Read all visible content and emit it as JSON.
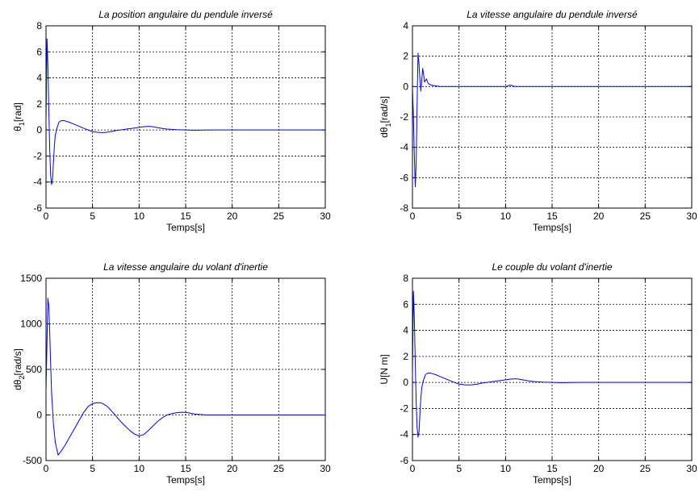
{
  "style": {
    "line_color": "#0000ff",
    "background": "#ffffff"
  },
  "chart_data": [
    {
      "type": "line",
      "title": "La position angulaire du pendule inversé",
      "xlabel": "Temps[s]",
      "ylabel": {
        "main": "θ",
        "sub": "1",
        "rest": "[rad]"
      },
      "xlim": [
        0,
        30
      ],
      "ylim": [
        -6,
        8
      ],
      "xticks": [
        0,
        5,
        10,
        15,
        20,
        25,
        30
      ],
      "yticks": [
        -6,
        -4,
        -2,
        0,
        2,
        4,
        6,
        8
      ],
      "grid": true,
      "series": [
        {
          "x": [
            0,
            0.1,
            0.2,
            0.3,
            0.4,
            0.5,
            0.6,
            0.7,
            0.8,
            0.9,
            1.0,
            1.2,
            1.4,
            1.6,
            1.8,
            2.0,
            2.5,
            3.0,
            3.5,
            4.0,
            4.5,
            5.0,
            5.5,
            6.0,
            6.5,
            7.0,
            7.5,
            8.0,
            8.5,
            9.0,
            9.5,
            10.0,
            10.5,
            11.0,
            11.5,
            12.0,
            12.5,
            13.0,
            14.0,
            15.0,
            16.0,
            17.0,
            18.0,
            20.0,
            22.0,
            25.0,
            28.0,
            30.0
          ],
          "y": [
            0.5,
            7.0,
            5.0,
            1.5,
            -1.5,
            -3.5,
            -4.2,
            -3.8,
            -2.5,
            -1.2,
            -0.4,
            0.2,
            0.6,
            0.7,
            0.72,
            0.7,
            0.6,
            0.45,
            0.3,
            0.15,
            0.0,
            -0.12,
            -0.18,
            -0.2,
            -0.18,
            -0.12,
            -0.05,
            0.0,
            0.05,
            0.1,
            0.15,
            0.2,
            0.25,
            0.28,
            0.25,
            0.18,
            0.12,
            0.07,
            0.03,
            0.0,
            -0.02,
            -0.01,
            0.0,
            0.0,
            0.0,
            0.0,
            0.0,
            0.0
          ]
        }
      ]
    },
    {
      "type": "line",
      "title": "La vitesse angulaire du pendule inversé",
      "xlabel": "Temps[s]",
      "ylabel": {
        "main": "dθ",
        "sub": "1",
        "rest": "[rad/s]"
      },
      "xlim": [
        0,
        30
      ],
      "ylim": [
        -8,
        4
      ],
      "xticks": [
        0,
        5,
        10,
        15,
        20,
        25,
        30
      ],
      "yticks": [
        -8,
        -6,
        -4,
        -2,
        0,
        2,
        4
      ],
      "grid": true,
      "series": [
        {
          "x": [
            0,
            0.1,
            0.2,
            0.3,
            0.4,
            0.5,
            0.6,
            0.7,
            0.8,
            0.9,
            1.0,
            1.1,
            1.2,
            1.3,
            1.5,
            1.7,
            2.0,
            2.5,
            3.0,
            5.0,
            8.0,
            10.0,
            10.5,
            11.0,
            12.0,
            15.0,
            20.0,
            25.0,
            30.0
          ],
          "y": [
            0.0,
            -2.0,
            -4.5,
            -6.6,
            -5.0,
            -1.0,
            2.2,
            1.5,
            0.5,
            -0.3,
            0.4,
            1.2,
            0.8,
            0.3,
            0.5,
            0.2,
            0.1,
            0.05,
            0.0,
            0.0,
            0.0,
            0.0,
            0.1,
            0.0,
            0.0,
            0.0,
            0.0,
            0.0,
            0.0
          ]
        }
      ]
    },
    {
      "type": "line",
      "title": "La vitesse angulaire du volant d'inertie",
      "xlabel": "Temps[s]",
      "ylabel": {
        "main": "dθ",
        "sub": "2",
        "rest": "[rad/s]"
      },
      "xlim": [
        0,
        30
      ],
      "ylim": [
        -500,
        1500
      ],
      "xticks": [
        0,
        5,
        10,
        15,
        20,
        25,
        30
      ],
      "yticks": [
        -500,
        0,
        500,
        1000,
        1500
      ],
      "grid": true,
      "series": [
        {
          "x": [
            0,
            0.1,
            0.2,
            0.3,
            0.4,
            0.5,
            0.6,
            0.8,
            1.0,
            1.3,
            1.6,
            2.0,
            2.5,
            3.0,
            3.5,
            4.0,
            4.5,
            5.0,
            5.5,
            6.0,
            6.5,
            7.0,
            7.5,
            8.0,
            8.5,
            9.0,
            9.5,
            10.0,
            10.5,
            11.0,
            11.5,
            12.0,
            12.5,
            13.0,
            13.5,
            14.0,
            14.5,
            15.0,
            15.5,
            16.0,
            16.5,
            17.0,
            18.0,
            20.0,
            25.0,
            30.0
          ],
          "y": [
            250,
            800,
            1280,
            1200,
            900,
            550,
            250,
            -100,
            -300,
            -440,
            -400,
            -340,
            -250,
            -160,
            -70,
            20,
            90,
            125,
            135,
            130,
            100,
            50,
            -10,
            -70,
            -120,
            -170,
            -210,
            -230,
            -215,
            -170,
            -120,
            -70,
            -30,
            0,
            15,
            25,
            30,
            28,
            20,
            10,
            5,
            2,
            0,
            0,
            0,
            0
          ]
        }
      ]
    },
    {
      "type": "line",
      "title": "Le couple du volant d'inertie",
      "xlabel": "Temps[s]",
      "ylabel": {
        "main": "U[N m]",
        "sub": "",
        "rest": ""
      },
      "xlim": [
        0,
        30
      ],
      "ylim": [
        -6,
        8
      ],
      "xticks": [
        0,
        5,
        10,
        15,
        20,
        25,
        30
      ],
      "yticks": [
        -6,
        -4,
        -2,
        0,
        2,
        4,
        6,
        8
      ],
      "grid": true,
      "series": [
        {
          "x": [
            0,
            0.1,
            0.2,
            0.3,
            0.4,
            0.5,
            0.6,
            0.7,
            0.8,
            0.9,
            1.0,
            1.2,
            1.4,
            1.6,
            1.8,
            2.0,
            2.5,
            3.0,
            3.5,
            4.0,
            4.5,
            5.0,
            5.5,
            6.0,
            6.5,
            7.0,
            7.5,
            8.0,
            8.5,
            9.0,
            9.5,
            10.0,
            10.5,
            11.0,
            11.5,
            12.0,
            12.5,
            13.0,
            14.0,
            15.0,
            16.0,
            17.0,
            18.0,
            20.0,
            22.0,
            25.0,
            28.0,
            30.0
          ],
          "y": [
            0.5,
            7.0,
            5.0,
            1.5,
            -1.5,
            -3.5,
            -4.2,
            -3.8,
            -2.5,
            -1.2,
            -0.4,
            0.2,
            0.6,
            0.7,
            0.72,
            0.7,
            0.6,
            0.45,
            0.3,
            0.15,
            0.0,
            -0.12,
            -0.18,
            -0.2,
            -0.18,
            -0.12,
            -0.05,
            0.0,
            0.05,
            0.1,
            0.15,
            0.2,
            0.25,
            0.28,
            0.25,
            0.18,
            0.12,
            0.07,
            0.03,
            0.0,
            -0.02,
            -0.01,
            0.0,
            0.0,
            0.0,
            0.0,
            0.0,
            0.0
          ]
        }
      ]
    }
  ]
}
